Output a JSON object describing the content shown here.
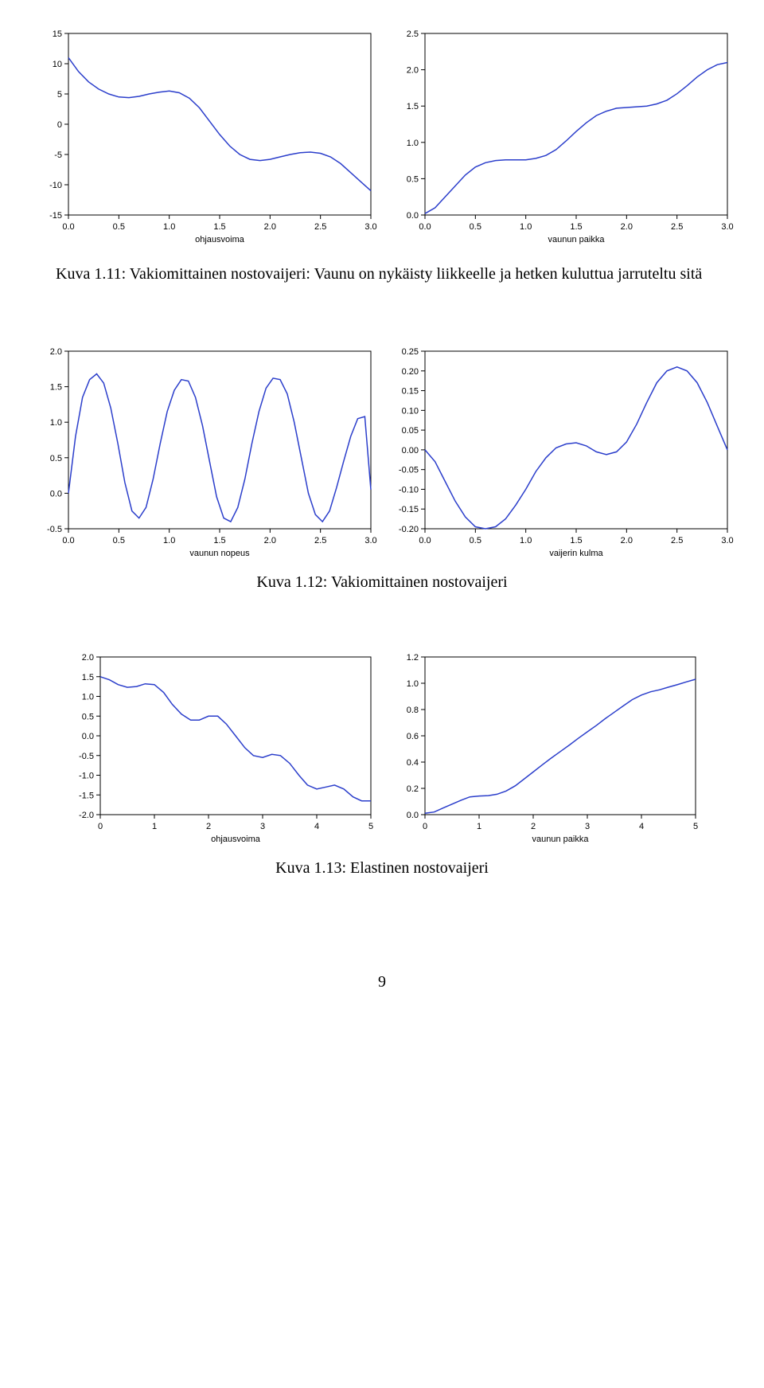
{
  "captions": {
    "c111": "Kuva 1.11: Vakiomittainen nostovaijeri: Vaunu on nykäisty liikkeelle ja hetken kuluttua jarruteltu sitä",
    "c112": "Kuva 1.12: Vakiomittainen nostovaijeri",
    "c113": "Kuva 1.13: Elastinen nostovaijeri"
  },
  "pagenum": "9",
  "style": {
    "line_color": "#2b3ecb",
    "frame_color": "#000000",
    "tick_fontsize": 11,
    "axis_fontsize": 11,
    "background": "#ffffff",
    "font_family_ticks": "Arial",
    "font_family_caption": "Times New Roman"
  },
  "plots": {
    "p1": {
      "type": "line",
      "xlabel": "ohjausvoima",
      "ylabel": "",
      "xlim": [
        0.0,
        3.0
      ],
      "xtick_step": 0.5,
      "ylim": [
        -15,
        15
      ],
      "ytick_step": 5,
      "data_x": [
        0.0,
        0.1,
        0.2,
        0.3,
        0.4,
        0.5,
        0.6,
        0.7,
        0.8,
        0.9,
        1.0,
        1.1,
        1.2,
        1.3,
        1.4,
        1.5,
        1.6,
        1.7,
        1.8,
        1.9,
        2.0,
        2.1,
        2.2,
        2.3,
        2.4,
        2.5,
        2.6,
        2.7,
        2.8,
        2.9,
        3.0
      ],
      "data_y": [
        11.0,
        8.7,
        7.0,
        5.8,
        5.0,
        4.5,
        4.4,
        4.6,
        5.0,
        5.3,
        5.5,
        5.2,
        4.3,
        2.7,
        0.5,
        -1.7,
        -3.6,
        -5.0,
        -5.8,
        -6.0,
        -5.8,
        -5.4,
        -5.0,
        -4.7,
        -4.6,
        -4.8,
        -5.4,
        -6.5,
        -8.0,
        -9.5,
        -11.0
      ]
    },
    "p2": {
      "type": "line",
      "xlabel": "vaunun paikka",
      "ylabel": "",
      "xlim": [
        0.0,
        3.0
      ],
      "xtick_step": 0.5,
      "ylim": [
        0.0,
        2.5
      ],
      "ytick_step": 0.5,
      "data_x": [
        0.0,
        0.1,
        0.2,
        0.3,
        0.4,
        0.5,
        0.6,
        0.7,
        0.8,
        0.9,
        1.0,
        1.1,
        1.2,
        1.3,
        1.4,
        1.5,
        1.6,
        1.7,
        1.8,
        1.9,
        2.0,
        2.1,
        2.2,
        2.3,
        2.4,
        2.5,
        2.6,
        2.7,
        2.8,
        2.9,
        3.0
      ],
      "data_y": [
        0.02,
        0.1,
        0.25,
        0.4,
        0.55,
        0.66,
        0.72,
        0.75,
        0.76,
        0.76,
        0.76,
        0.78,
        0.82,
        0.9,
        1.02,
        1.15,
        1.27,
        1.37,
        1.43,
        1.47,
        1.48,
        1.49,
        1.5,
        1.53,
        1.58,
        1.67,
        1.78,
        1.9,
        2.0,
        2.07,
        2.1
      ]
    },
    "p3": {
      "type": "line",
      "xlabel": "vaunun nopeus",
      "ylabel": "",
      "xlim": [
        0.0,
        3.0
      ],
      "xtick_step": 0.5,
      "ylim": [
        -0.5,
        2.0
      ],
      "ytick_step": 0.5,
      "data_x": [
        0.0,
        0.07,
        0.14,
        0.21,
        0.28,
        0.35,
        0.42,
        0.49,
        0.56,
        0.63,
        0.7,
        0.77,
        0.84,
        0.91,
        0.98,
        1.05,
        1.12,
        1.19,
        1.26,
        1.33,
        1.4,
        1.47,
        1.54,
        1.61,
        1.68,
        1.75,
        1.82,
        1.89,
        1.96,
        2.03,
        2.1,
        2.17,
        2.24,
        2.31,
        2.38,
        2.45,
        2.52,
        2.59,
        2.66,
        2.73,
        2.8,
        2.87,
        2.94,
        3.0
      ],
      "data_y": [
        0.0,
        0.8,
        1.35,
        1.6,
        1.68,
        1.55,
        1.2,
        0.7,
        0.15,
        -0.25,
        -0.35,
        -0.2,
        0.2,
        0.7,
        1.15,
        1.45,
        1.6,
        1.58,
        1.35,
        0.95,
        0.45,
        -0.05,
        -0.35,
        -0.4,
        -0.2,
        0.2,
        0.7,
        1.15,
        1.48,
        1.62,
        1.6,
        1.4,
        1.0,
        0.5,
        0.0,
        -0.3,
        -0.4,
        -0.25,
        0.08,
        0.45,
        0.8,
        1.05,
        1.08,
        0.05
      ]
    },
    "p4": {
      "type": "line",
      "xlabel": "vaijerin kulma",
      "ylabel": "",
      "xlim": [
        0.0,
        3.0
      ],
      "xtick_step": 0.5,
      "ylim": [
        -0.2,
        0.25
      ],
      "ytick_step": 0.05,
      "data_x": [
        0.0,
        0.1,
        0.2,
        0.3,
        0.4,
        0.5,
        0.6,
        0.7,
        0.8,
        0.9,
        1.0,
        1.1,
        1.2,
        1.3,
        1.4,
        1.5,
        1.6,
        1.7,
        1.8,
        1.9,
        2.0,
        2.1,
        2.2,
        2.3,
        2.4,
        2.5,
        2.6,
        2.7,
        2.8,
        2.9,
        3.0
      ],
      "data_y": [
        0.0,
        -0.03,
        -0.08,
        -0.13,
        -0.17,
        -0.195,
        -0.2,
        -0.195,
        -0.175,
        -0.14,
        -0.1,
        -0.055,
        -0.02,
        0.005,
        0.015,
        0.018,
        0.01,
        -0.005,
        -0.012,
        -0.005,
        0.02,
        0.065,
        0.12,
        0.17,
        0.2,
        0.21,
        0.2,
        0.17,
        0.12,
        0.06,
        0.0
      ]
    },
    "p5": {
      "type": "line",
      "xlabel": "ohjausvoima",
      "ylabel": "",
      "xlim": [
        0,
        5
      ],
      "xtick_step": 1,
      "ylim": [
        -2.0,
        2.0
      ],
      "ytick_step": 0.5,
      "data_x": [
        0.0,
        0.17,
        0.33,
        0.5,
        0.67,
        0.83,
        1.0,
        1.17,
        1.33,
        1.5,
        1.67,
        1.83,
        2.0,
        2.17,
        2.33,
        2.5,
        2.67,
        2.83,
        3.0,
        3.17,
        3.33,
        3.5,
        3.67,
        3.83,
        4.0,
        4.17,
        4.33,
        4.5,
        4.67,
        4.83,
        5.0
      ],
      "data_y": [
        1.5,
        1.42,
        1.3,
        1.23,
        1.25,
        1.32,
        1.3,
        1.1,
        0.8,
        0.55,
        0.4,
        0.4,
        0.5,
        0.5,
        0.3,
        0.0,
        -0.3,
        -0.5,
        -0.55,
        -0.47,
        -0.5,
        -0.7,
        -1.0,
        -1.25,
        -1.35,
        -1.3,
        -1.25,
        -1.35,
        -1.55,
        -1.65,
        -1.65
      ]
    },
    "p6": {
      "type": "line",
      "xlabel": "vaunun paikka",
      "ylabel": "",
      "xlim": [
        0,
        5
      ],
      "xtick_step": 1,
      "ylim": [
        0.0,
        1.2
      ],
      "ytick_step": 0.2,
      "data_x": [
        0.0,
        0.17,
        0.33,
        0.5,
        0.67,
        0.83,
        1.0,
        1.17,
        1.33,
        1.5,
        1.67,
        1.83,
        2.0,
        2.17,
        2.33,
        2.5,
        2.67,
        2.83,
        3.0,
        3.17,
        3.33,
        3.5,
        3.67,
        3.83,
        4.0,
        4.17,
        4.33,
        4.5,
        4.67,
        4.83,
        5.0
      ],
      "data_y": [
        0.01,
        0.02,
        0.05,
        0.08,
        0.11,
        0.135,
        0.142,
        0.145,
        0.155,
        0.18,
        0.22,
        0.27,
        0.325,
        0.38,
        0.43,
        0.48,
        0.53,
        0.58,
        0.63,
        0.68,
        0.73,
        0.78,
        0.83,
        0.875,
        0.91,
        0.935,
        0.95,
        0.97,
        0.99,
        1.01,
        1.03
      ]
    }
  }
}
